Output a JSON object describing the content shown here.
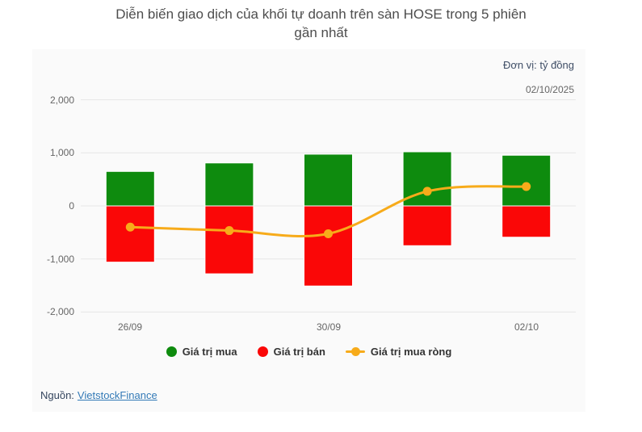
{
  "title": {
    "full": "Diễn biến giao dịch của khối tự doanh trên sàn HOSE trong 5 phiên gần nhất",
    "line1": "Diễn biến giao dịch của khối tự doanh trên sàn HOSE trong 5 phiên",
    "line2": "gần nhất"
  },
  "header": {
    "unit_label": "Đơn vị: tỷ đồng",
    "date_label": "02/10/2025"
  },
  "source": {
    "prefix": "Nguồn:",
    "link_text": "VietstockFinance"
  },
  "colors": {
    "buy": "#0e8b0e",
    "sell": "#fa0707",
    "net": "#f7ab1a",
    "grid": "#e6e6e6",
    "panel_bg": "#fafafa",
    "axis_text": "#666666",
    "title_text": "#4d4d4d",
    "unit_text": "#3f4e66",
    "link": "#337ab7"
  },
  "chart_data": {
    "type": "bar",
    "subtype": "columns with spline line overlay",
    "title": "Diễn biến giao dịch của khối tự doanh trên sàn HOSE trong 5 phiên gần nhất",
    "unit": "tỷ đồng",
    "categories": [
      "26/09",
      "",
      "30/09",
      "",
      "02/10"
    ],
    "xtick_labels": [
      "26/09",
      "30/09",
      "02/10"
    ],
    "series": [
      {
        "key": "buy",
        "name": "Giá trị mua",
        "type": "column",
        "color": "#0e8b0e",
        "values": [
          650,
          810,
          975,
          1020,
          955
        ]
      },
      {
        "key": "sell",
        "name": "Giá trị bán",
        "type": "column",
        "color": "#fa0707",
        "values": [
          -1060,
          -1280,
          -1510,
          -750,
          -590
        ]
      },
      {
        "key": "net",
        "name": "Giá trị mua ròng",
        "type": "line",
        "color": "#f7ab1a",
        "values": [
          -400,
          -465,
          -525,
          275,
          365
        ]
      }
    ],
    "ylim": [
      -2000,
      2000
    ],
    "yticks": [
      2000,
      1000,
      0,
      -1000,
      -2000
    ],
    "ytick_labels": [
      "2,000",
      "1,000",
      "0",
      "-1,000",
      "-2,000"
    ],
    "grid": true,
    "legend_position": "bottom-center"
  }
}
